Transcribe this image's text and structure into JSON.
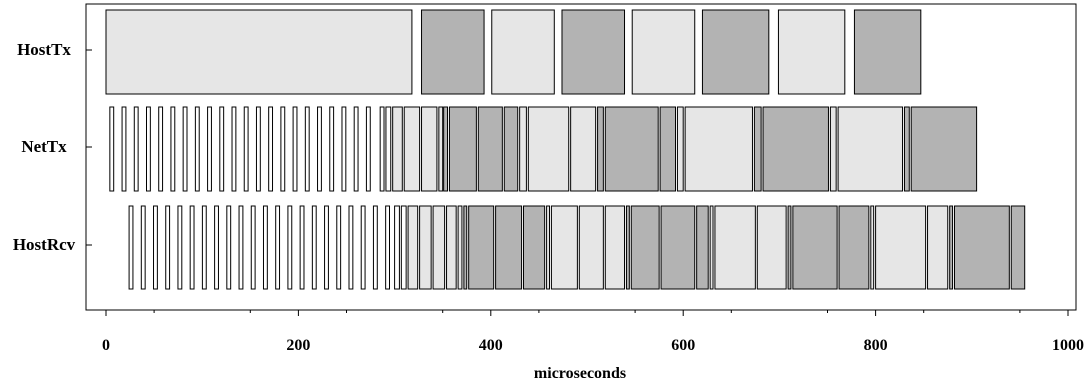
{
  "chart_data": {
    "type": "timeline",
    "xlabel": "microseconds",
    "xlim": [
      0,
      1000
    ],
    "xticks": [
      0,
      200,
      400,
      600,
      800,
      1000
    ],
    "tick_labels": [
      "0",
      "200",
      "400",
      "600",
      "800",
      "1000"
    ],
    "grid": false,
    "colors": {
      "light": "#e6e6e6",
      "dark": "#b3b3b3",
      "white": "#ffffff",
      "stroke": "#000000"
    },
    "rows": [
      {
        "label": "HostTx",
        "segments": [
          {
            "start": 0,
            "end": 318,
            "shade": "light"
          },
          {
            "start": 328,
            "end": 393,
            "shade": "dark"
          },
          {
            "start": 401,
            "end": 466,
            "shade": "light"
          },
          {
            "start": 474,
            "end": 539,
            "shade": "dark"
          },
          {
            "start": 547,
            "end": 612,
            "shade": "light"
          },
          {
            "start": 620,
            "end": 689,
            "shade": "dark"
          },
          {
            "start": 699,
            "end": 768,
            "shade": "light"
          },
          {
            "start": 778,
            "end": 847,
            "shade": "dark"
          }
        ]
      },
      {
        "label": "NetTx",
        "small": {
          "start": 4,
          "width": 4,
          "gap": 12.7,
          "count": 22
        },
        "segments": [
          {
            "start": 285,
            "end": 289,
            "shade": "white"
          },
          {
            "start": 291,
            "end": 296,
            "shade": "white"
          },
          {
            "start": 298,
            "end": 308,
            "shade": "light"
          },
          {
            "start": 310,
            "end": 326,
            "shade": "light"
          },
          {
            "start": 328,
            "end": 344,
            "shade": "light"
          },
          {
            "start": 346,
            "end": 350,
            "shade": "light"
          },
          {
            "start": 351,
            "end": 355,
            "shade": "dark"
          },
          {
            "start": 357,
            "end": 385,
            "shade": "dark"
          },
          {
            "start": 387,
            "end": 412,
            "shade": "dark"
          },
          {
            "start": 414,
            "end": 428,
            "shade": "dark"
          },
          {
            "start": 430,
            "end": 437,
            "shade": "light"
          },
          {
            "start": 439,
            "end": 481,
            "shade": "light"
          },
          {
            "start": 483,
            "end": 509,
            "shade": "light"
          },
          {
            "start": 511,
            "end": 517,
            "shade": "dark"
          },
          {
            "start": 519,
            "end": 574,
            "shade": "dark"
          },
          {
            "start": 576,
            "end": 592,
            "shade": "dark"
          },
          {
            "start": 594,
            "end": 600,
            "shade": "light"
          },
          {
            "start": 602,
            "end": 672,
            "shade": "light"
          },
          {
            "start": 674,
            "end": 681,
            "shade": "dark"
          },
          {
            "start": 683,
            "end": 751,
            "shade": "dark"
          },
          {
            "start": 753,
            "end": 759,
            "shade": "light"
          },
          {
            "start": 761,
            "end": 828,
            "shade": "light"
          },
          {
            "start": 830,
            "end": 835,
            "shade": "dark"
          },
          {
            "start": 837,
            "end": 905,
            "shade": "dark"
          }
        ]
      },
      {
        "label": "HostRcv",
        "small": {
          "start": 24,
          "width": 4,
          "gap": 12.7,
          "count": 22
        },
        "segments": [
          {
            "start": 300,
            "end": 305,
            "shade": "white"
          },
          {
            "start": 307,
            "end": 312,
            "shade": "white"
          },
          {
            "start": 314,
            "end": 324,
            "shade": "light"
          },
          {
            "start": 326,
            "end": 338,
            "shade": "light"
          },
          {
            "start": 340,
            "end": 352,
            "shade": "light"
          },
          {
            "start": 354,
            "end": 364,
            "shade": "light"
          },
          {
            "start": 366,
            "end": 370,
            "shade": "light"
          },
          {
            "start": 372,
            "end": 375,
            "shade": "dark"
          },
          {
            "start": 377,
            "end": 403,
            "shade": "dark"
          },
          {
            "start": 405,
            "end": 432,
            "shade": "dark"
          },
          {
            "start": 434,
            "end": 456,
            "shade": "dark"
          },
          {
            "start": 458,
            "end": 461,
            "shade": "light"
          },
          {
            "start": 463,
            "end": 490,
            "shade": "light"
          },
          {
            "start": 492,
            "end": 517,
            "shade": "light"
          },
          {
            "start": 519,
            "end": 539,
            "shade": "light"
          },
          {
            "start": 541,
            "end": 544,
            "shade": "dark"
          },
          {
            "start": 546,
            "end": 575,
            "shade": "dark"
          },
          {
            "start": 577,
            "end": 612,
            "shade": "dark"
          },
          {
            "start": 614,
            "end": 626,
            "shade": "dark"
          },
          {
            "start": 628,
            "end": 631,
            "shade": "light"
          },
          {
            "start": 633,
            "end": 675,
            "shade": "light"
          },
          {
            "start": 677,
            "end": 707,
            "shade": "light"
          },
          {
            "start": 709,
            "end": 712,
            "shade": "dark"
          },
          {
            "start": 714,
            "end": 760,
            "shade": "dark"
          },
          {
            "start": 762,
            "end": 793,
            "shade": "dark"
          },
          {
            "start": 795,
            "end": 798,
            "shade": "light"
          },
          {
            "start": 800,
            "end": 852,
            "shade": "light"
          },
          {
            "start": 854,
            "end": 875,
            "shade": "light"
          },
          {
            "start": 877,
            "end": 880,
            "shade": "dark"
          },
          {
            "start": 882,
            "end": 939,
            "shade": "dark"
          },
          {
            "start": 941,
            "end": 955,
            "shade": "dark"
          }
        ]
      }
    ]
  }
}
